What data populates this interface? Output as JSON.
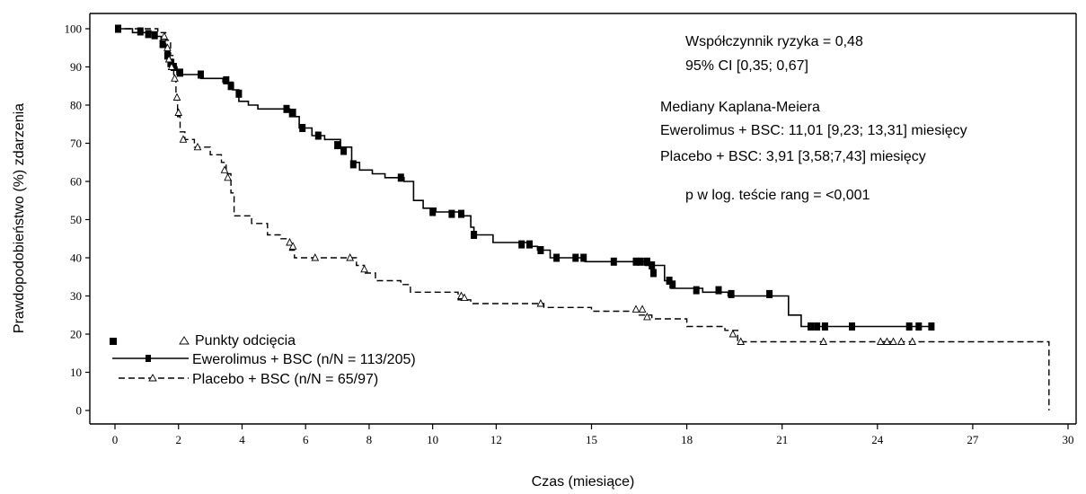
{
  "chart_data": {
    "type": "line",
    "xlabel": "Czas (miesiące)",
    "ylabel": "Prawdopodobieństwo (%) zdarzenia",
    "xlim": [
      0,
      30
    ],
    "ylim": [
      0,
      100
    ],
    "x_ticks": [
      0,
      2,
      4,
      6,
      8,
      10,
      12,
      15,
      18,
      21,
      24,
      27,
      30
    ],
    "y_ticks": [
      0,
      10,
      20,
      30,
      40,
      50,
      60,
      70,
      80,
      90,
      100
    ],
    "grid": false,
    "legend_position": "bottom-left",
    "legend": {
      "censor_label": "Punkty odcięcia",
      "entries": [
        {
          "series": "ewerolimus",
          "label": "Ewerolimus + BSC (n/N = 113/205)"
        },
        {
          "series": "placebo",
          "label": "Placebo + BSC (n/N = 65/97)"
        }
      ]
    },
    "annotations": [
      "Współczynnik ryzyka = 0,48",
      "95% CI [0,35; 0,67]",
      "Mediany Kaplana-Meiera",
      "Ewerolimus + BSC: 11,01 [9,23; 13,31] miesięcy",
      "Placebo + BSC: 3,91 [3,58;7,43] miesięcy",
      "p w log. teście rang = <0,001"
    ],
    "series": [
      {
        "id": "ewerolimus",
        "line_style": "solid",
        "censor_marker": "filled-square",
        "steps": [
          [
            0,
            100
          ],
          [
            0.55,
            99
          ],
          [
            1.3,
            98
          ],
          [
            1.45,
            96
          ],
          [
            1.6,
            94
          ],
          [
            1.72,
            92
          ],
          [
            1.82,
            90
          ],
          [
            1.95,
            88
          ],
          [
            2.7,
            87
          ],
          [
            3.4,
            86
          ],
          [
            3.7,
            84
          ],
          [
            3.9,
            81
          ],
          [
            4.2,
            80
          ],
          [
            4.5,
            79
          ],
          [
            5.5,
            77
          ],
          [
            5.8,
            74
          ],
          [
            6.2,
            72
          ],
          [
            6.6,
            71
          ],
          [
            7.1,
            69
          ],
          [
            7.45,
            65
          ],
          [
            7.7,
            63
          ],
          [
            8.1,
            62
          ],
          [
            8.5,
            61
          ],
          [
            9.1,
            60
          ],
          [
            9.4,
            55
          ],
          [
            9.7,
            53
          ],
          [
            10.1,
            52
          ],
          [
            10.9,
            51
          ],
          [
            11.2,
            48
          ],
          [
            11.3,
            46
          ],
          [
            11.9,
            44
          ],
          [
            13.0,
            43
          ],
          [
            13.3,
            42
          ],
          [
            13.7,
            40
          ],
          [
            14.8,
            39
          ],
          [
            16.7,
            38
          ],
          [
            17.3,
            34
          ],
          [
            17.5,
            32
          ],
          [
            18.5,
            31
          ],
          [
            19.3,
            30
          ],
          [
            21.2,
            25
          ],
          [
            21.6,
            22
          ],
          [
            25.7,
            22
          ]
        ],
        "censored": [
          [
            0.1,
            100
          ],
          [
            0.8,
            99.3
          ],
          [
            1.05,
            98.6
          ],
          [
            1.25,
            98.3
          ],
          [
            1.5,
            96
          ],
          [
            1.65,
            93
          ],
          [
            1.75,
            91
          ],
          [
            1.85,
            90
          ],
          [
            2.05,
            88.5
          ],
          [
            2.7,
            88
          ],
          [
            3.5,
            86.5
          ],
          [
            3.65,
            85
          ],
          [
            3.9,
            83
          ],
          [
            5.4,
            79
          ],
          [
            5.6,
            78
          ],
          [
            5.9,
            74
          ],
          [
            6.4,
            72
          ],
          [
            7.0,
            69.5
          ],
          [
            7.2,
            68
          ],
          [
            7.5,
            64.5
          ],
          [
            9.0,
            61
          ],
          [
            10.0,
            52
          ],
          [
            10.6,
            51.5
          ],
          [
            10.9,
            51.5
          ],
          [
            11.3,
            46
          ],
          [
            12.8,
            43.5
          ],
          [
            13.05,
            43.5
          ],
          [
            13.4,
            42
          ],
          [
            13.9,
            40
          ],
          [
            14.5,
            40
          ],
          [
            14.75,
            40
          ],
          [
            15.7,
            39
          ],
          [
            16.4,
            39
          ],
          [
            16.55,
            39
          ],
          [
            16.75,
            39
          ],
          [
            16.9,
            38
          ],
          [
            16.95,
            36
          ],
          [
            17.45,
            34
          ],
          [
            17.55,
            33
          ],
          [
            18.3,
            31.5
          ],
          [
            19.0,
            31.5
          ],
          [
            19.4,
            30.5
          ],
          [
            20.6,
            30.5
          ],
          [
            21.9,
            22
          ],
          [
            22.1,
            22
          ],
          [
            22.35,
            22
          ],
          [
            23.2,
            22
          ],
          [
            25.0,
            22
          ],
          [
            25.3,
            22
          ],
          [
            25.7,
            22
          ]
        ]
      },
      {
        "id": "placebo",
        "line_style": "dashed",
        "censor_marker": "open-triangle",
        "steps": [
          [
            0,
            100
          ],
          [
            1.35,
            99
          ],
          [
            1.6,
            97
          ],
          [
            1.75,
            93
          ],
          [
            1.85,
            88
          ],
          [
            1.92,
            82
          ],
          [
            1.97,
            77
          ],
          [
            2.05,
            73
          ],
          [
            2.2,
            71
          ],
          [
            2.5,
            69
          ],
          [
            3.0,
            67
          ],
          [
            3.35,
            65
          ],
          [
            3.5,
            62
          ],
          [
            3.65,
            57
          ],
          [
            3.75,
            51
          ],
          [
            4.3,
            49
          ],
          [
            4.8,
            46
          ],
          [
            5.2,
            45
          ],
          [
            5.5,
            42
          ],
          [
            5.65,
            40
          ],
          [
            7.6,
            38
          ],
          [
            7.85,
            36
          ],
          [
            8.2,
            34
          ],
          [
            9.0,
            33
          ],
          [
            9.3,
            31
          ],
          [
            10.8,
            29
          ],
          [
            11.2,
            28
          ],
          [
            13.5,
            27
          ],
          [
            15.0,
            26
          ],
          [
            16.5,
            25
          ],
          [
            16.9,
            24
          ],
          [
            18.0,
            22
          ],
          [
            19.2,
            21
          ],
          [
            19.6,
            18
          ],
          [
            29.4,
            18
          ],
          [
            29.4,
            0
          ]
        ],
        "censored": [
          [
            1.55,
            98
          ],
          [
            1.65,
            95
          ],
          [
            1.7,
            92
          ],
          [
            1.78,
            90
          ],
          [
            1.88,
            87
          ],
          [
            1.95,
            82
          ],
          [
            2.0,
            78
          ],
          [
            2.15,
            71
          ],
          [
            2.6,
            69
          ],
          [
            3.45,
            63
          ],
          [
            3.55,
            61
          ],
          [
            5.5,
            44
          ],
          [
            5.6,
            43
          ],
          [
            6.3,
            40
          ],
          [
            7.4,
            40
          ],
          [
            7.85,
            37
          ],
          [
            10.9,
            30
          ],
          [
            11.0,
            29.5
          ],
          [
            13.4,
            28
          ],
          [
            16.4,
            26.5
          ],
          [
            16.6,
            26.5
          ],
          [
            16.75,
            24.5
          ],
          [
            19.45,
            20
          ],
          [
            19.7,
            18
          ],
          [
            22.3,
            18
          ],
          [
            24.1,
            18
          ],
          [
            24.3,
            18
          ],
          [
            24.5,
            18
          ],
          [
            24.75,
            18
          ],
          [
            25.1,
            18
          ]
        ]
      }
    ]
  }
}
